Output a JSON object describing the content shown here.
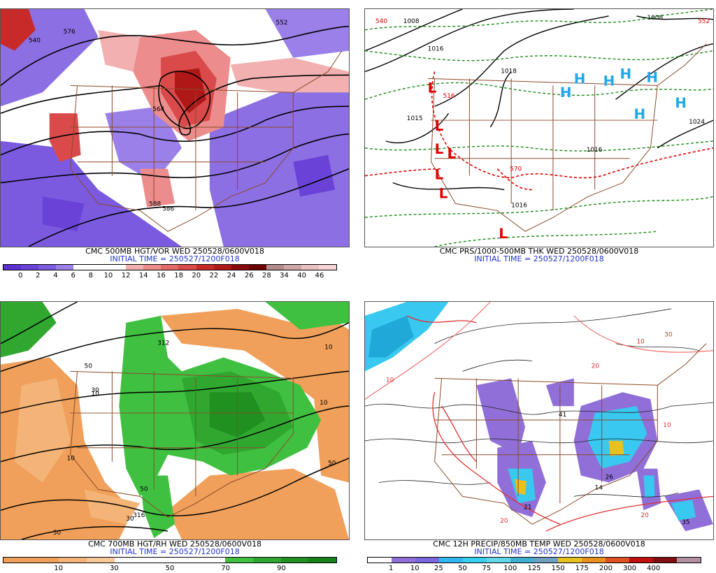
{
  "panels": [
    {
      "caption": "CMC 500MB HGT/VOR WED 250528/0600V018",
      "init": "INITIAL TIME = 250527/1200F018",
      "colors": [
        "#5d2fd0",
        "#6a42d8",
        "#7b5ae0",
        "#9a80e8",
        "#ffffff",
        "#ffffff",
        "#ffffff",
        "#f2b0b0",
        "#ec8c8c",
        "#e46a6a",
        "#da4a4a",
        "#c82a2a",
        "#b01818",
        "#8a0a0a",
        "#6a0404",
        "#b48a8a",
        "#cfa5a5",
        "#e8c0c0",
        "#f4d4d4"
      ],
      "ticks": [
        "0",
        "2",
        "4",
        "6",
        "8",
        "10",
        "12",
        "14",
        "16",
        "18",
        "20",
        "22",
        "24",
        "26",
        "28",
        "34",
        "40",
        "46"
      ],
      "map_labels": [
        "564",
        "576",
        "540",
        "552",
        "588",
        "586"
      ]
    },
    {
      "caption": "CMC PRS/1000-500MB THK WED 250528/0600V018",
      "init": "INITIAL TIME = 250527/1200F018",
      "highs": [
        "H",
        "H",
        "H",
        "H",
        "H",
        "H",
        "H"
      ],
      "lows": [
        "L",
        "L",
        "L",
        "L",
        "L",
        "L",
        "L"
      ],
      "map_labels": [
        "540",
        "1008",
        "1016",
        "1018",
        "1016",
        "1024",
        "570",
        "1015",
        "1016",
        "516",
        "1008",
        "552"
      ]
    },
    {
      "caption": "CMC 700MB HGT/RH WED 250528/0600V018",
      "init": "INITIAL TIME = 250527/1200F018",
      "colors": [
        "#f0a05a",
        "#f0a05a",
        "#f4b478",
        "#f8c898",
        "#ffffff",
        "#ffffff",
        "#ffffff",
        "#ffffff",
        "#40c040",
        "#30a830",
        "#209020",
        "#188018"
      ],
      "ticks": [
        "10",
        "30",
        "50",
        "70",
        "90"
      ],
      "map_labels": [
        "10",
        "50",
        "30",
        "312",
        "50",
        "10",
        "30",
        "316",
        "10",
        "50",
        "50",
        "10"
      ]
    },
    {
      "caption": "CMC 12H PRECIP/850MB TEMP WED 250528/0600V018",
      "init": "INITIAL TIME = 250527/1200F018",
      "colors": [
        "#ffffff",
        "#9070d8",
        "#7a68e0",
        "#30b8f0",
        "#38d0f0",
        "#60d8e8",
        "#40b0d0",
        "#70a0c0",
        "#e8c020",
        "#e89020",
        "#e05020",
        "#c01010",
        "#801010",
        "#b090a0"
      ],
      "ticks": [
        "1",
        "10",
        "25",
        "50",
        "75",
        "100",
        "125",
        "150",
        "175",
        "200",
        "300",
        "400"
      ],
      "map_labels": [
        "10",
        "20",
        "10",
        "30",
        "20",
        "10",
        "41",
        "26",
        "14",
        "21",
        "35",
        "20"
      ]
    }
  ]
}
